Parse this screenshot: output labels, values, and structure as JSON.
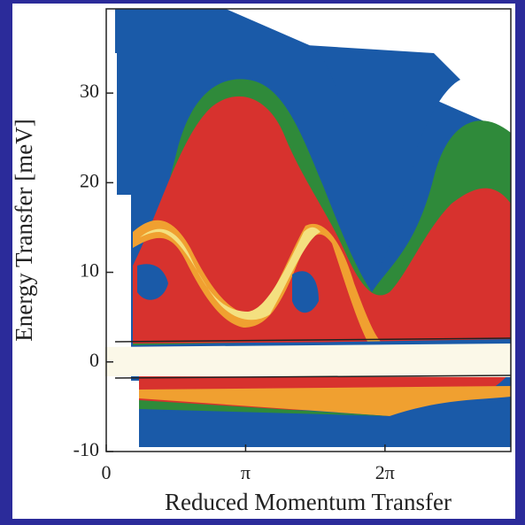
{
  "chart_data": {
    "type": "contour",
    "xlabel": "Reduced Momentum Transfer",
    "ylabel": "Energy Transfer [meV]",
    "xlim": [
      0,
      9.12
    ],
    "xticks": [
      0,
      {
        "value": 3.1416,
        "label": "π"
      },
      {
        "value": 6.2832,
        "label": "2π"
      }
    ],
    "ylim": [
      -10,
      39.4
    ],
    "yticks": [
      -10,
      0,
      10,
      20,
      30
    ]
  }
}
